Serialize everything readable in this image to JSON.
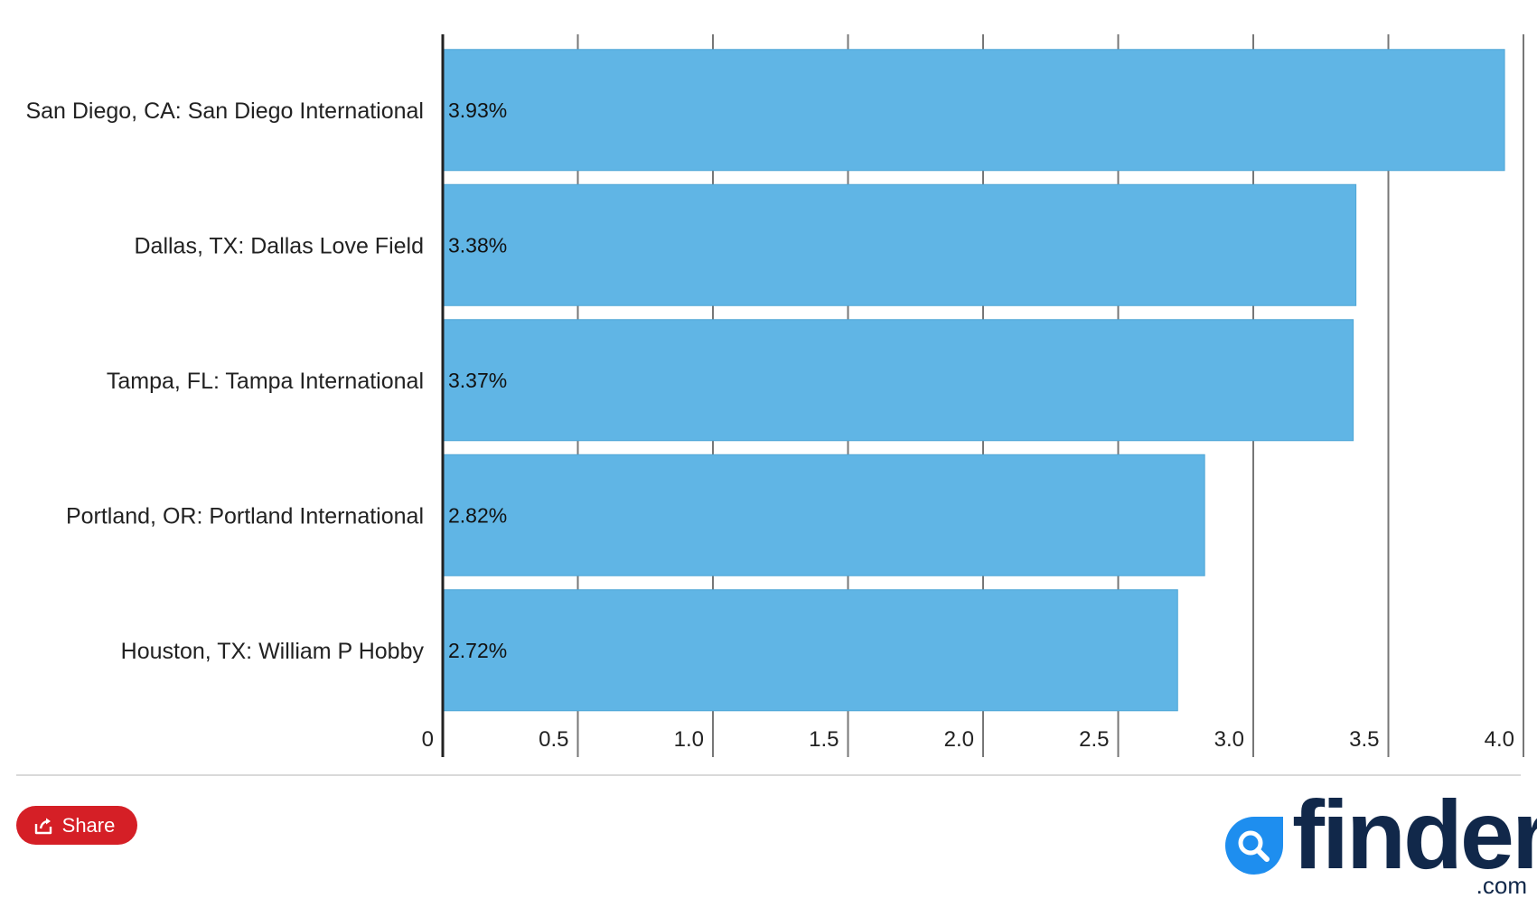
{
  "chart_data": {
    "type": "bar",
    "orientation": "horizontal",
    "categories": [
      "San Diego, CA: San Diego International",
      "Dallas, TX: Dallas Love Field",
      "Tampa, FL: Tampa International",
      "Portland, OR: Portland International",
      "Houston, TX: William P Hobby"
    ],
    "values": [
      3.93,
      3.38,
      3.37,
      2.82,
      2.72
    ],
    "value_labels": [
      "3.93%",
      "3.38%",
      "3.37%",
      "2.82%",
      "2.72%"
    ],
    "xlim": [
      0,
      4.0
    ],
    "x_ticks": [
      "0",
      "0.5",
      "1.0",
      "1.5",
      "2.0",
      "2.5",
      "3.0",
      "3.5",
      "4.0"
    ],
    "x_tick_values": [
      0,
      0.5,
      1.0,
      1.5,
      2.0,
      2.5,
      3.0,
      3.5,
      4.0
    ],
    "grid": true,
    "bar_color": "#60b5e5",
    "grid_color": "#777777",
    "axis_color": "#222222"
  },
  "footer": {
    "share_label": "Share",
    "share_color": "#d51f26",
    "logo_word": "finder",
    "logo_suffix": ".com",
    "logo_color": "#11284a",
    "logo_mark_color": "#1e8eef",
    "share_icon": "share-icon",
    "logo_icon": "magnifier-icon"
  }
}
